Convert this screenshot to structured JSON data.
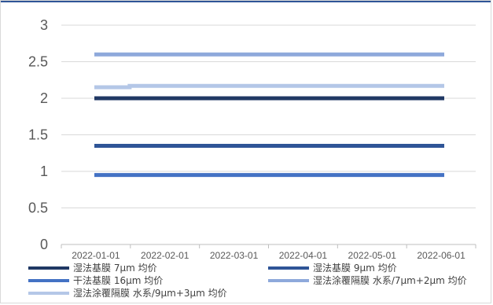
{
  "chart_data": {
    "type": "line",
    "title": "",
    "xlabel": "",
    "ylabel": "",
    "x": [
      "2022-01-01",
      "2022-02-01",
      "2022-03-01",
      "2022-04-01",
      "2022-05-01",
      "2022-06-01"
    ],
    "ylim": [
      0,
      3
    ],
    "yticks": [
      "0",
      "0.5",
      "1",
      "1.5",
      "2",
      "2.5",
      "3"
    ],
    "grid": true,
    "legend_position": "bottom",
    "series": [
      {
        "name": "湿法基膜 7μm 均价",
        "color": "#203864",
        "values": [
          2.0,
          2.0,
          2.0,
          2.0,
          2.0,
          2.0
        ]
      },
      {
        "name": "湿法基膜 9μm 均价",
        "color": "#2f5597",
        "values": [
          1.35,
          1.35,
          1.35,
          1.35,
          1.35,
          1.35
        ]
      },
      {
        "name": "干法基膜 16μm 均价",
        "color": "#4472c4",
        "values": [
          0.95,
          0.95,
          0.95,
          0.95,
          0.95,
          0.95
        ]
      },
      {
        "name": "湿法涂覆隔膜 水系/7μm+2μm 均价",
        "color": "#8ea9db",
        "values": [
          2.6,
          2.6,
          2.6,
          2.6,
          2.6,
          2.6
        ]
      },
      {
        "name": "湿法涂覆隔膜 水系/9μm+3μm 均价",
        "color": "#b4c7e7",
        "values": [
          2.15,
          2.17,
          2.17,
          2.17,
          2.17,
          2.17
        ]
      }
    ]
  }
}
